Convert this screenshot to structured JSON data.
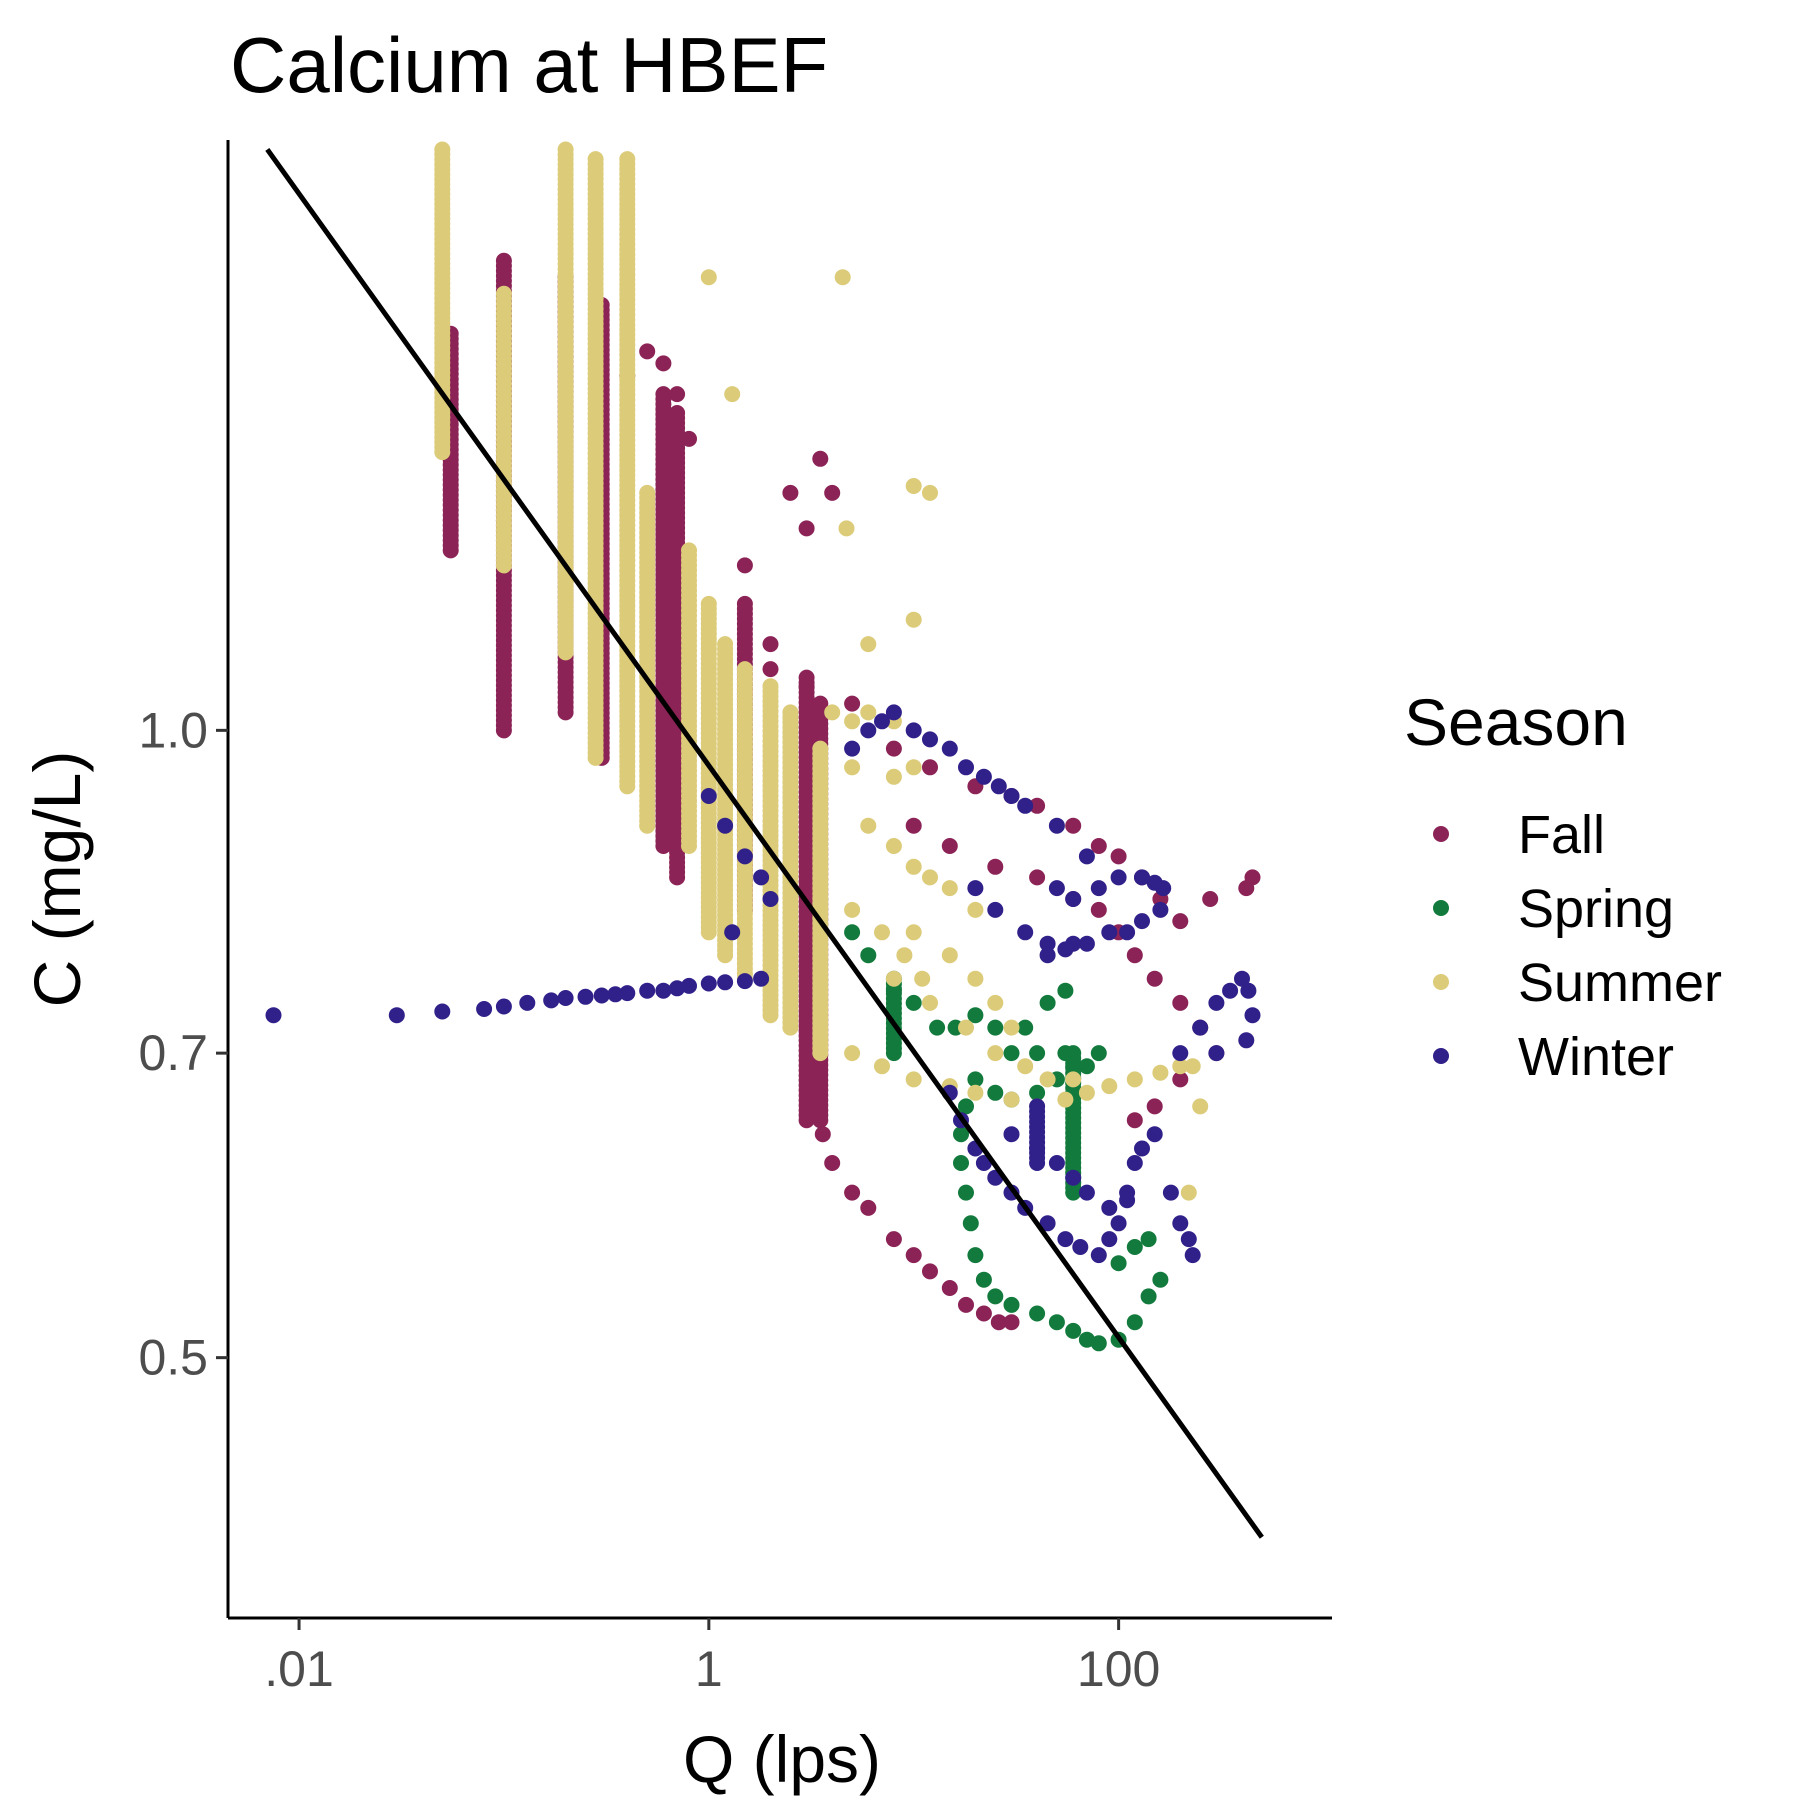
{
  "chart_data": {
    "type": "scatter",
    "title": "Calcium at HBEF",
    "xlabel": "Q (lps)",
    "ylabel": "C (mg/L)",
    "x_scale": "log10",
    "y_scale": "log10",
    "xlim": [
      0.0045,
      1100
    ],
    "ylim": [
      0.375,
      1.92
    ],
    "x_ticks": [
      {
        "value": 0.01,
        "label": ".01"
      },
      {
        "value": 1,
        "label": "1"
      },
      {
        "value": 100,
        "label": "100"
      }
    ],
    "y_ticks": [
      {
        "value": 0.5,
        "label": "0.5"
      },
      {
        "value": 0.7,
        "label": "0.7"
      },
      {
        "value": 1.0,
        "label": "1.0"
      }
    ],
    "grid": false,
    "legend": {
      "title": "Season",
      "position": "right"
    },
    "series": [
      {
        "name": "Fall",
        "color": "#8c2356",
        "columns": [
          {
            "x": 0.055,
            "y": [
              1.22,
              1.55
            ]
          },
          {
            "x": 0.1,
            "y": [
              1.0,
              1.68
            ]
          },
          {
            "x": 0.2,
            "y": [
              1.02,
              1.65
            ]
          },
          {
            "x": 0.3,
            "y": [
              0.97,
              1.6
            ]
          },
          {
            "x": 0.6,
            "y": [
              0.88,
              1.45
            ]
          },
          {
            "x": 0.7,
            "y": [
              0.85,
              1.42
            ]
          },
          {
            "x": 1.5,
            "y": [
              0.82,
              1.15
            ]
          },
          {
            "x": 3.0,
            "y": [
              0.65,
              1.06
            ]
          },
          {
            "x": 3.5,
            "y": [
              0.65,
              1.03
            ]
          }
        ],
        "points": [
          [
            0.4,
            1.48
          ],
          [
            0.5,
            1.52
          ],
          [
            0.6,
            1.5
          ],
          [
            0.7,
            1.45
          ],
          [
            0.8,
            1.38
          ],
          [
            1.5,
            1.2
          ],
          [
            2.0,
            1.1
          ],
          [
            2.5,
            1.3
          ],
          [
            3.0,
            1.25
          ],
          [
            3.5,
            1.35
          ],
          [
            4.0,
            1.3
          ],
          [
            2.0,
            1.07
          ],
          [
            3.0,
            1.05
          ],
          [
            5.0,
            1.03
          ],
          [
            8.0,
            0.98
          ],
          [
            12.0,
            0.96
          ],
          [
            20.0,
            0.94
          ],
          [
            30.0,
            0.93
          ],
          [
            40.0,
            0.92
          ],
          [
            60.0,
            0.9
          ],
          [
            80.0,
            0.88
          ],
          [
            100.0,
            0.87
          ],
          [
            130.0,
            0.85
          ],
          [
            160.0,
            0.83
          ],
          [
            200.0,
            0.81
          ],
          [
            280.0,
            0.83
          ],
          [
            420.0,
            0.84
          ],
          [
            450.0,
            0.85
          ],
          [
            10.0,
            0.9
          ],
          [
            15.0,
            0.88
          ],
          [
            25.0,
            0.86
          ],
          [
            40.0,
            0.85
          ],
          [
            60.0,
            0.83
          ],
          [
            80.0,
            0.82
          ],
          [
            100.0,
            0.8
          ],
          [
            120.0,
            0.78
          ],
          [
            150.0,
            0.76
          ],
          [
            200.0,
            0.74
          ],
          [
            250.0,
            0.72
          ],
          [
            300.0,
            0.7
          ],
          [
            200.0,
            0.68
          ],
          [
            150.0,
            0.66
          ],
          [
            120.0,
            0.65
          ],
          [
            3.6,
            0.64
          ],
          [
            4.0,
            0.62
          ],
          [
            5.0,
            0.6
          ],
          [
            6.0,
            0.59
          ],
          [
            8.0,
            0.57
          ],
          [
            10.0,
            0.56
          ],
          [
            12.0,
            0.55
          ],
          [
            15.0,
            0.54
          ],
          [
            18.0,
            0.53
          ],
          [
            22.0,
            0.525
          ],
          [
            26.0,
            0.52
          ],
          [
            30.0,
            0.52
          ]
        ]
      },
      {
        "name": "Spring",
        "color": "#127a3c",
        "columns": [
          {
            "x": 8.0,
            "y": [
              0.7,
              0.76
            ]
          },
          {
            "x": 60.0,
            "y": [
              0.6,
              0.7
            ]
          }
        ],
        "points": [
          [
            5.0,
            0.8
          ],
          [
            6.0,
            0.78
          ],
          [
            8.0,
            0.75
          ],
          [
            10.0,
            0.74
          ],
          [
            13.0,
            0.72
          ],
          [
            16.0,
            0.72
          ],
          [
            20.0,
            0.73
          ],
          [
            25.0,
            0.72
          ],
          [
            30.0,
            0.7
          ],
          [
            40.0,
            0.7
          ],
          [
            55.0,
            0.7
          ],
          [
            70.0,
            0.69
          ],
          [
            80.0,
            0.7
          ],
          [
            20.0,
            0.68
          ],
          [
            25.0,
            0.67
          ],
          [
            30.0,
            0.665
          ],
          [
            40.0,
            0.67
          ],
          [
            50.0,
            0.68
          ],
          [
            60.0,
            0.69
          ],
          [
            35.0,
            0.72
          ],
          [
            45.0,
            0.74
          ],
          [
            55.0,
            0.75
          ],
          [
            18.0,
            0.66
          ],
          [
            17.0,
            0.64
          ],
          [
            17.0,
            0.62
          ],
          [
            18.0,
            0.6
          ],
          [
            19.0,
            0.58
          ],
          [
            20.0,
            0.56
          ],
          [
            22.0,
            0.545
          ],
          [
            25.0,
            0.535
          ],
          [
            30.0,
            0.53
          ],
          [
            40.0,
            0.525
          ],
          [
            50.0,
            0.52
          ],
          [
            60.0,
            0.515
          ],
          [
            70.0,
            0.51
          ],
          [
            80.0,
            0.508
          ],
          [
            100.0,
            0.51
          ],
          [
            120.0,
            0.52
          ],
          [
            140.0,
            0.535
          ],
          [
            160.0,
            0.545
          ],
          [
            100.0,
            0.555
          ],
          [
            120.0,
            0.565
          ],
          [
            140.0,
            0.57
          ]
        ]
      },
      {
        "name": "Summer",
        "color": "#dccb78",
        "columns": [
          {
            "x": 0.05,
            "y": [
              1.36,
              1.9
            ]
          },
          {
            "x": 0.1,
            "y": [
              1.2,
              1.62
            ]
          },
          {
            "x": 0.2,
            "y": [
              1.09,
              1.9
            ]
          },
          {
            "x": 0.28,
            "y": [
              0.97,
              1.88
            ]
          },
          {
            "x": 0.4,
            "y": [
              0.94,
              1.88
            ]
          },
          {
            "x": 0.5,
            "y": [
              0.9,
              1.3
            ]
          },
          {
            "x": 0.8,
            "y": [
              0.88,
              1.22
            ]
          },
          {
            "x": 1.0,
            "y": [
              0.8,
              1.15
            ]
          },
          {
            "x": 1.2,
            "y": [
              0.78,
              1.1
            ]
          },
          {
            "x": 1.5,
            "y": [
              0.76,
              1.07
            ]
          },
          {
            "x": 2.0,
            "y": [
              0.73,
              1.05
            ]
          },
          {
            "x": 2.5,
            "y": [
              0.72,
              1.02
            ]
          },
          {
            "x": 3.5,
            "y": [
              0.7,
              0.98
            ]
          }
        ],
        "points": [
          [
            1.0,
            1.65
          ],
          [
            1.3,
            1.45
          ],
          [
            4.5,
            1.65
          ],
          [
            4.7,
            1.25
          ],
          [
            6.0,
            1.1
          ],
          [
            10.0,
            1.31
          ],
          [
            12.0,
            1.3
          ],
          [
            10.0,
            1.13
          ],
          [
            4.0,
            1.02
          ],
          [
            5.0,
            1.01
          ],
          [
            6.0,
            1.02
          ],
          [
            8.0,
            1.01
          ],
          [
            5.0,
            0.96
          ],
          [
            8.0,
            0.95
          ],
          [
            10.0,
            0.96
          ],
          [
            6.0,
            0.9
          ],
          [
            8.0,
            0.88
          ],
          [
            10.0,
            0.86
          ],
          [
            12.0,
            0.85
          ],
          [
            15.0,
            0.84
          ],
          [
            20.0,
            0.82
          ],
          [
            10.0,
            0.8
          ],
          [
            15.0,
            0.78
          ],
          [
            20.0,
            0.76
          ],
          [
            25.0,
            0.74
          ],
          [
            30.0,
            0.72
          ],
          [
            5.0,
            0.7
          ],
          [
            7.0,
            0.69
          ],
          [
            10.0,
            0.68
          ],
          [
            15.0,
            0.675
          ],
          [
            20.0,
            0.67
          ],
          [
            30.0,
            0.665
          ],
          [
            40.0,
            0.66
          ],
          [
            55.0,
            0.665
          ],
          [
            70.0,
            0.67
          ],
          [
            90.0,
            0.675
          ],
          [
            120.0,
            0.68
          ],
          [
            160.0,
            0.685
          ],
          [
            200.0,
            0.69
          ],
          [
            230.0,
            0.69
          ],
          [
            250.0,
            0.66
          ],
          [
            220.0,
            0.6
          ],
          [
            8.0,
            0.76
          ],
          [
            12.0,
            0.74
          ],
          [
            18.0,
            0.72
          ],
          [
            25.0,
            0.7
          ],
          [
            35.0,
            0.69
          ],
          [
            45.0,
            0.68
          ],
          [
            60.0,
            0.68
          ],
          [
            5.0,
            0.82
          ],
          [
            7.0,
            0.8
          ],
          [
            9.0,
            0.78
          ],
          [
            11.0,
            0.76
          ]
        ]
      },
      {
        "name": "Winter",
        "color": "#30208a",
        "columns": [
          {
            "x": 40.0,
            "y": [
              0.62,
              0.66
            ]
          }
        ],
        "points": [
          [
            0.0075,
            0.73
          ],
          [
            0.03,
            0.73
          ],
          [
            0.05,
            0.733
          ],
          [
            0.08,
            0.735
          ],
          [
            0.1,
            0.737
          ],
          [
            0.13,
            0.74
          ],
          [
            0.17,
            0.742
          ],
          [
            0.2,
            0.744
          ],
          [
            0.25,
            0.745
          ],
          [
            0.3,
            0.746
          ],
          [
            0.35,
            0.747
          ],
          [
            0.4,
            0.748
          ],
          [
            0.5,
            0.75
          ],
          [
            0.6,
            0.75
          ],
          [
            0.7,
            0.752
          ],
          [
            0.8,
            0.754
          ],
          [
            1.0,
            0.756
          ],
          [
            1.2,
            0.757
          ],
          [
            1.5,
            0.758
          ],
          [
            1.8,
            0.76
          ],
          [
            1.0,
            0.93
          ],
          [
            1.2,
            0.9
          ],
          [
            1.5,
            0.87
          ],
          [
            1.8,
            0.85
          ],
          [
            2.0,
            0.83
          ],
          [
            1.3,
            0.8
          ],
          [
            5.0,
            0.98
          ],
          [
            6.0,
            1.0
          ],
          [
            7.0,
            1.01
          ],
          [
            8.0,
            1.02
          ],
          [
            10.0,
            1.0
          ],
          [
            12.0,
            0.99
          ],
          [
            15.0,
            0.98
          ],
          [
            18.0,
            0.96
          ],
          [
            22.0,
            0.95
          ],
          [
            26.0,
            0.94
          ],
          [
            30.0,
            0.93
          ],
          [
            35.0,
            0.92
          ],
          [
            50.0,
            0.9
          ],
          [
            70.0,
            0.87
          ],
          [
            50.0,
            0.84
          ],
          [
            60.0,
            0.83
          ],
          [
            80.0,
            0.84
          ],
          [
            100.0,
            0.85
          ],
          [
            130.0,
            0.85
          ],
          [
            150.0,
            0.845
          ],
          [
            165.0,
            0.84
          ],
          [
            160.0,
            0.82
          ],
          [
            130.0,
            0.81
          ],
          [
            110.0,
            0.8
          ],
          [
            90.0,
            0.8
          ],
          [
            70.0,
            0.79
          ],
          [
            55.0,
            0.785
          ],
          [
            45.0,
            0.78
          ],
          [
            20.0,
            0.84
          ],
          [
            25.0,
            0.82
          ],
          [
            35.0,
            0.8
          ],
          [
            45.0,
            0.79
          ],
          [
            60.0,
            0.79
          ],
          [
            200.0,
            0.7
          ],
          [
            250.0,
            0.72
          ],
          [
            300.0,
            0.74
          ],
          [
            350.0,
            0.75
          ],
          [
            400.0,
            0.76
          ],
          [
            430.0,
            0.75
          ],
          [
            450.0,
            0.73
          ],
          [
            420.0,
            0.71
          ],
          [
            300.0,
            0.7
          ],
          [
            15.0,
            0.67
          ],
          [
            17.0,
            0.65
          ],
          [
            20.0,
            0.63
          ],
          [
            22.0,
            0.62
          ],
          [
            25.0,
            0.61
          ],
          [
            30.0,
            0.6
          ],
          [
            35.0,
            0.59
          ],
          [
            45.0,
            0.58
          ],
          [
            55.0,
            0.57
          ],
          [
            65.0,
            0.565
          ],
          [
            80.0,
            0.56
          ],
          [
            90.0,
            0.57
          ],
          [
            100.0,
            0.58
          ],
          [
            110.0,
            0.6
          ],
          [
            120.0,
            0.62
          ],
          [
            130.0,
            0.63
          ],
          [
            150.0,
            0.64
          ],
          [
            30.0,
            0.64
          ],
          [
            40.0,
            0.63
          ],
          [
            50.0,
            0.62
          ],
          [
            60.0,
            0.61
          ],
          [
            70.0,
            0.6
          ],
          [
            90.0,
            0.59
          ],
          [
            110.0,
            0.595
          ],
          [
            180.0,
            0.6
          ],
          [
            200.0,
            0.58
          ],
          [
            220.0,
            0.57
          ],
          [
            230.0,
            0.56
          ]
        ]
      }
    ],
    "trend_line": {
      "color": "#000000",
      "from": {
        "x": 0.007,
        "y": 1.9
      },
      "to": {
        "x": 500.0,
        "y": 0.41
      }
    }
  }
}
